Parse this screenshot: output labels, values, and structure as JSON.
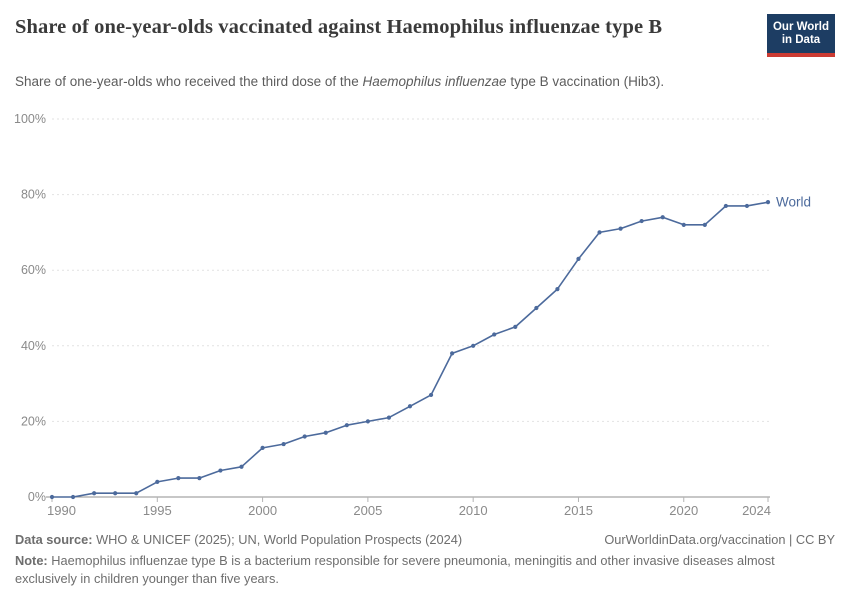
{
  "header": {
    "title": "Share of one-year-olds vaccinated against Haemophilus influenzae type B",
    "logo": {
      "line1": "Our World",
      "line2": "in Data"
    }
  },
  "subtitle": {
    "before": "Share of one-year-olds who received the third dose of the ",
    "italic": "Haemophilus influenzae",
    "after": " type B vaccination (Hib3)."
  },
  "chart_data": {
    "type": "line",
    "title": "Share of one-year-olds vaccinated against Haemophilus influenzae type B",
    "subtitle": "Share of one-year-olds who received the third dose of the Haemophilus influenzae type B vaccination (Hib3).",
    "x": [
      1990,
      1991,
      1992,
      1993,
      1994,
      1995,
      1996,
      1997,
      1998,
      1999,
      2000,
      2001,
      2002,
      2003,
      2004,
      2005,
      2006,
      2007,
      2008,
      2009,
      2010,
      2011,
      2012,
      2013,
      2014,
      2015,
      2016,
      2017,
      2018,
      2019,
      2020,
      2021,
      2022,
      2023,
      2024
    ],
    "series": [
      {
        "name": "World",
        "color": "#4c6a9c",
        "values": [
          0,
          0,
          1,
          1,
          1,
          4,
          5,
          5,
          7,
          8,
          13,
          14,
          16,
          17,
          19,
          20,
          21,
          24,
          27,
          38,
          40,
          43,
          45,
          50,
          55,
          63,
          70,
          71,
          73,
          74,
          72,
          72,
          77,
          77,
          78
        ]
      }
    ],
    "ylim": [
      0,
      100
    ],
    "yticks": [
      0,
      20,
      40,
      60,
      80,
      100
    ],
    "ytick_suffix": "%",
    "xticks": [
      1990,
      1995,
      2000,
      2005,
      2010,
      2015,
      2020,
      2024
    ],
    "grid": "horizontal-dashed",
    "legend_position": "end-of-line",
    "colors": {
      "gridline": "#e2e2e2",
      "axis": "#8f8f8f",
      "tick": "#b3b3b3",
      "tick_label": "#8a8a8a"
    }
  },
  "footer": {
    "sources_label": "Data source:",
    "sources_text": " WHO & UNICEF (2025); UN, World Population Prospects (2024)",
    "rights": "OurWorldinData.org/vaccination | CC BY",
    "note_label": "Note:",
    "note_text": " Haemophilus influenzae type B is a bacterium responsible for severe pneumonia, meningitis and other invasive diseases almost exclusively in children younger than five years."
  }
}
